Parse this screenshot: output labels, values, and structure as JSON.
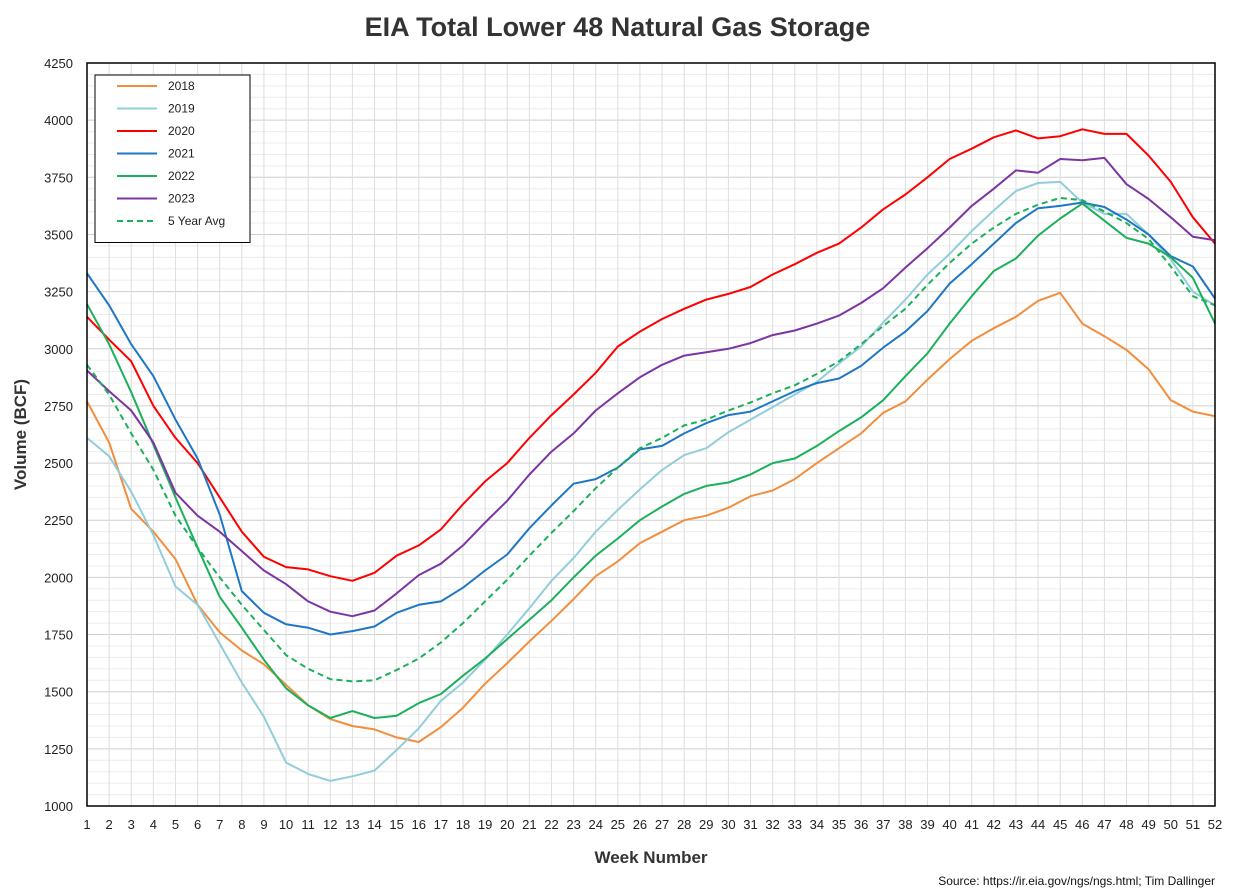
{
  "chart_data": {
    "type": "line",
    "title": "EIA Total Lower 48 Natural Gas Storage",
    "xlabel": "Week Number",
    "ylabel": "Volume (BCF)",
    "source": "Source: https://ir.eia.gov/ngs/ngs.html; Tim Dallinger",
    "xlim": [
      1,
      52
    ],
    "ylim": [
      1000,
      4250
    ],
    "y_ticks": [
      1000,
      1250,
      1500,
      1750,
      2000,
      2250,
      2500,
      2750,
      3000,
      3250,
      3500,
      3750,
      4000,
      4250
    ],
    "x": [
      1,
      2,
      3,
      4,
      5,
      6,
      7,
      8,
      9,
      10,
      11,
      12,
      13,
      14,
      15,
      16,
      17,
      18,
      19,
      20,
      21,
      22,
      23,
      24,
      25,
      26,
      27,
      28,
      29,
      30,
      31,
      32,
      33,
      34,
      35,
      36,
      37,
      38,
      39,
      40,
      41,
      42,
      43,
      44,
      45,
      46,
      47,
      48,
      49,
      50,
      51,
      52
    ],
    "x_tick_labels": [
      "1",
      "2",
      "3",
      "4",
      "5",
      "6",
      "7",
      "8",
      "9",
      "10",
      "11",
      "12",
      "13",
      "14",
      "15",
      "16",
      "17",
      "18",
      "19",
      "20",
      "21",
      "22",
      "23",
      "24",
      "25",
      "26",
      "27",
      "28",
      "29",
      "30",
      "31",
      "32",
      "33",
      "34",
      "35",
      "36",
      "37",
      "38",
      "39",
      "40",
      "41",
      "42",
      "43",
      "44",
      "45",
      "46",
      "47",
      "48",
      "49",
      "50",
      "51",
      "52"
    ],
    "grid": true,
    "legend_position": "top-left",
    "series": [
      {
        "name": "2018",
        "color": "#f28e3c",
        "dash": false,
        "values": [
          2770,
          2590,
          2300,
          2200,
          2080,
          1880,
          1760,
          1680,
          1620,
          1530,
          1440,
          1380,
          1350,
          1335,
          1300,
          1280,
          1345,
          1430,
          1535,
          1625,
          1720,
          1810,
          1905,
          2005,
          2070,
          2150,
          2200,
          2250,
          2270,
          2305,
          2355,
          2380,
          2430,
          2500,
          2565,
          2630,
          2720,
          2770,
          2865,
          2955,
          3035,
          3090,
          3140,
          3210,
          3245,
          3110,
          3055,
          2995,
          2910,
          2775,
          2725,
          2705
        ]
      },
      {
        "name": "2019",
        "color": "#92cddc",
        "dash": false,
        "values": [
          2610,
          2530,
          2375,
          2185,
          1960,
          1880,
          1710,
          1540,
          1390,
          1190,
          1140,
          1110,
          1130,
          1155,
          1245,
          1340,
          1460,
          1540,
          1640,
          1750,
          1865,
          1985,
          2085,
          2200,
          2295,
          2385,
          2470,
          2535,
          2565,
          2635,
          2690,
          2745,
          2800,
          2855,
          2935,
          3010,
          3115,
          3215,
          3325,
          3415,
          3515,
          3605,
          3690,
          3725,
          3730,
          3640,
          3590,
          3590,
          3500,
          3390,
          3250,
          3190
        ]
      },
      {
        "name": "2020",
        "color": "#ff0000",
        "dash": false,
        "values": [
          3140,
          3040,
          2945,
          2750,
          2610,
          2500,
          2350,
          2200,
          2090,
          2045,
          2035,
          2005,
          1985,
          2020,
          2095,
          2140,
          2210,
          2320,
          2420,
          2500,
          2610,
          2710,
          2800,
          2895,
          3010,
          3075,
          3130,
          3175,
          3215,
          3240,
          3270,
          3325,
          3370,
          3420,
          3460,
          3530,
          3610,
          3675,
          3750,
          3830,
          3875,
          3925,
          3955,
          3920,
          3930,
          3960,
          3940,
          3940,
          3845,
          3730,
          3575,
          3460
        ]
      },
      {
        "name": "2021",
        "color": "#1f77c4",
        "dash": false,
        "values": [
          3330,
          3190,
          3020,
          2880,
          2690,
          2520,
          2275,
          1940,
          1845,
          1795,
          1780,
          1750,
          1765,
          1785,
          1845,
          1880,
          1895,
          1955,
          2030,
          2100,
          2215,
          2315,
          2410,
          2430,
          2480,
          2560,
          2575,
          2630,
          2675,
          2710,
          2725,
          2770,
          2815,
          2850,
          2870,
          2925,
          3005,
          3075,
          3165,
          3285,
          3370,
          3460,
          3550,
          3615,
          3625,
          3640,
          3620,
          3565,
          3500,
          3405,
          3360,
          3220
        ]
      },
      {
        "name": "2022",
        "color": "#1cb05a",
        "dash": false,
        "values": [
          3195,
          3020,
          2810,
          2580,
          2350,
          2130,
          1915,
          1780,
          1640,
          1515,
          1440,
          1385,
          1415,
          1385,
          1395,
          1450,
          1490,
          1570,
          1645,
          1730,
          1815,
          1900,
          2000,
          2095,
          2170,
          2250,
          2310,
          2365,
          2400,
          2415,
          2450,
          2500,
          2520,
          2575,
          2640,
          2700,
          2775,
          2880,
          2980,
          3110,
          3230,
          3340,
          3395,
          3495,
          3570,
          3635,
          3560,
          3485,
          3460,
          3400,
          3310,
          3110
        ]
      },
      {
        "name": "2023",
        "color": "#7c35a2",
        "dash": false,
        "values": [
          2905,
          2815,
          2730,
          2590,
          2370,
          2270,
          2200,
          2115,
          2030,
          1970,
          1895,
          1850,
          1830,
          1855,
          1930,
          2010,
          2060,
          2140,
          2240,
          2335,
          2450,
          2550,
          2630,
          2730,
          2805,
          2875,
          2930,
          2970,
          2985,
          3000,
          3025,
          3060,
          3080,
          3110,
          3145,
          3200,
          3265,
          3355,
          3440,
          3530,
          3625,
          3700,
          3780,
          3770,
          3830,
          3825,
          3835,
          3720,
          3655,
          3575,
          3490,
          3475
        ]
      },
      {
        "name": "5 Year Avg",
        "color": "#1cb05a",
        "dash": true,
        "values": [
          2930,
          2800,
          2630,
          2470,
          2270,
          2130,
          2000,
          1880,
          1770,
          1660,
          1600,
          1555,
          1545,
          1550,
          1595,
          1645,
          1715,
          1800,
          1895,
          1990,
          2095,
          2195,
          2290,
          2390,
          2480,
          2565,
          2610,
          2665,
          2690,
          2730,
          2765,
          2805,
          2840,
          2890,
          2945,
          3020,
          3100,
          3175,
          3280,
          3375,
          3460,
          3530,
          3590,
          3630,
          3660,
          3650,
          3600,
          3550,
          3480,
          3360,
          3230,
          3190
        ]
      }
    ]
  }
}
